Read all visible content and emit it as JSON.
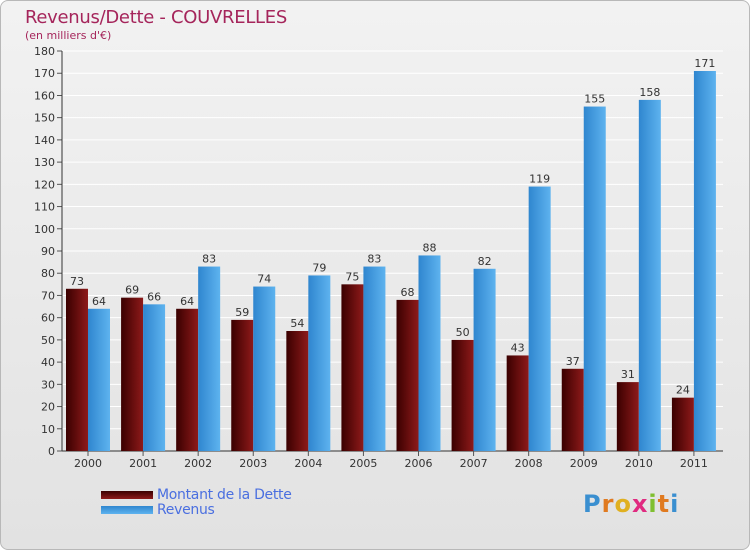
{
  "chart_data": {
    "type": "bar",
    "title": "Revenus/Dette - COUVRELLES",
    "subtitle": "(en milliers d'€)",
    "categories": [
      "2000",
      "2001",
      "2002",
      "2003",
      "2004",
      "2005",
      "2006",
      "2007",
      "2008",
      "2009",
      "2010",
      "2011"
    ],
    "series": [
      {
        "name": "Montant de la Dette",
        "color": "#6b0000",
        "values": [
          73,
          69,
          64,
          59,
          54,
          75,
          68,
          50,
          43,
          37,
          31,
          24
        ]
      },
      {
        "name": "Revenus",
        "color": "#4aa3e8",
        "values": [
          64,
          66,
          83,
          74,
          79,
          83,
          88,
          82,
          119,
          155,
          158,
          171
        ]
      }
    ],
    "ylim": [
      0,
      180
    ],
    "yticks": [
      0,
      10,
      20,
      30,
      40,
      50,
      60,
      70,
      80,
      90,
      100,
      110,
      120,
      130,
      140,
      150,
      160,
      170,
      180
    ],
    "grid": true,
    "legend_position": "bottom-left"
  },
  "logo": {
    "letters": [
      {
        "ch": "P",
        "color": "#3a8fd0"
      },
      {
        "ch": "r",
        "color": "#e07a20"
      },
      {
        "ch": "o",
        "color": "#e0b020"
      },
      {
        "ch": "x",
        "color": "#e02a80"
      },
      {
        "ch": "i",
        "color": "#7fbf30"
      },
      {
        "ch": "t",
        "color": "#e07a20"
      },
      {
        "ch": "i",
        "color": "#3a8fd0"
      }
    ]
  }
}
